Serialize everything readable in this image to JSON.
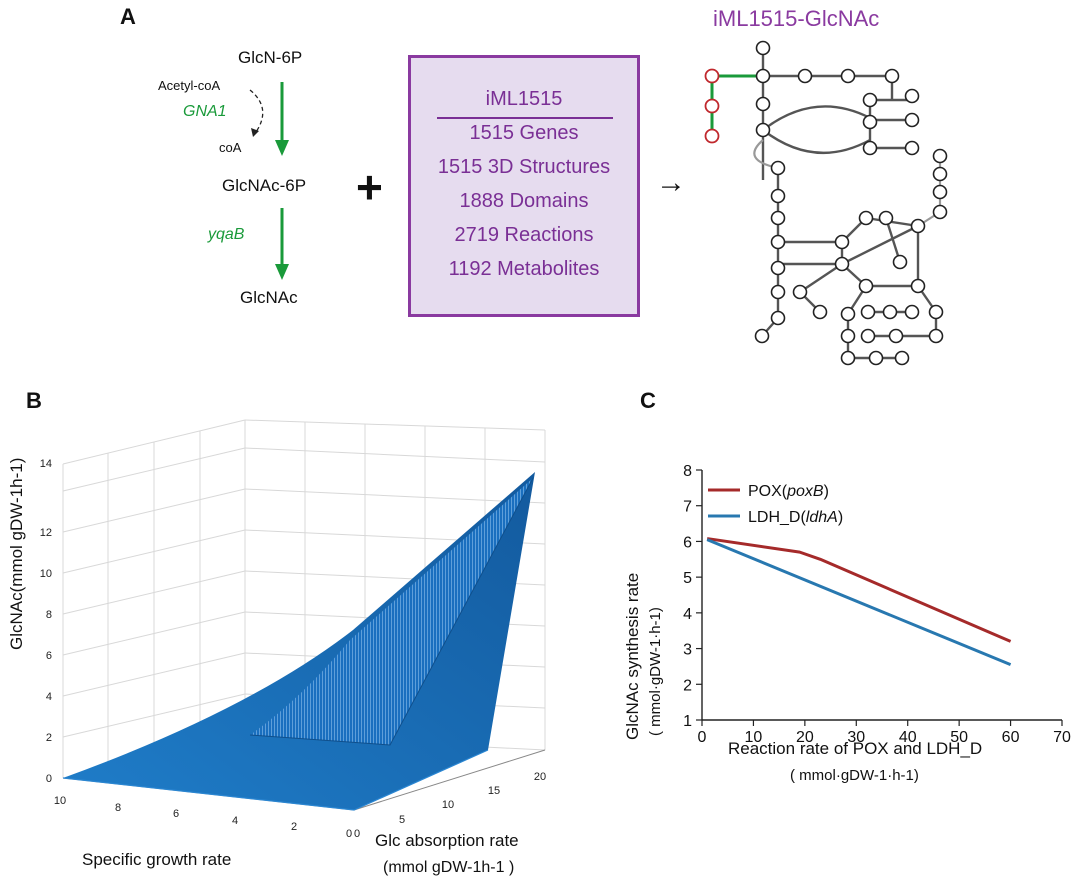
{
  "panel_labels": {
    "a": "A",
    "b": "B",
    "c": "C"
  },
  "pathway": {
    "m1": "GlcN-6P",
    "m2": "GlcNAc-6P",
    "m3": "GlcNAc",
    "enzyme1": "GNA1",
    "enzyme2": "yqaB",
    "cofactor_in": "Acetyl-coA",
    "cofactor_out": "coA"
  },
  "plus_symbol": "+",
  "arrow_symbol": "→",
  "model_box": {
    "name": "iML1515",
    "stats": [
      "1515 Genes",
      "1515 3D Structures",
      "1888 Domains",
      "2719 Reactions",
      "1192 Metabolites"
    ]
  },
  "network": {
    "title": "iML1515-GlcNAc"
  },
  "colors": {
    "green": "#1a9a3a",
    "purple": "#8a3aa0",
    "red_series": "#a52a2a",
    "blue_series": "#2878b0",
    "surface": "#1a6fbf"
  },
  "chart_data": [
    {
      "type": "surface3d",
      "panel": "B",
      "zlabel": "GlcNAc(mmol gDW-1h-1)",
      "xlabel": "Specific growth rate",
      "ylabel_line1": "Glc absorption rate",
      "ylabel_line2": "(mmol gDW-1h-1 )",
      "x_ticks": [
        "10",
        "8",
        "6",
        "4",
        "2",
        "0"
      ],
      "y_ticks": [
        "0",
        "5",
        "10",
        "15",
        "20"
      ],
      "z_ticks": [
        "0",
        "2",
        "4",
        "6",
        "8",
        "10",
        "12",
        "14"
      ],
      "xlim": [
        0,
        10
      ],
      "ylim": [
        0,
        20
      ],
      "zlim": [
        0,
        14
      ],
      "surface_peak": {
        "x": 0,
        "y": 20,
        "z": 13.7
      }
    },
    {
      "type": "line",
      "panel": "C",
      "xlabel": "Reaction rate of POX and LDH_D",
      "xlabel_unit": "( mmol·gDW-1·h-1)",
      "ylabel": "GlcNAc synthesis rate",
      "ylabel_unit": "( mmol·gDW-1·h-1)",
      "xlim": [
        0,
        70
      ],
      "ylim": [
        1,
        8
      ],
      "x_ticks": [
        "0",
        "10",
        "20",
        "30",
        "40",
        "50",
        "60",
        "70"
      ],
      "y_ticks": [
        "1",
        "2",
        "3",
        "4",
        "5",
        "6",
        "7",
        "8"
      ],
      "series": [
        {
          "name": "POX(",
          "gene": "poxB",
          "name_end": ")",
          "color": "#a52a2a",
          "x": [
            1,
            19,
            23,
            60
          ],
          "y": [
            6.08,
            5.7,
            5.5,
            3.2
          ]
        },
        {
          "name": "LDH_D(",
          "gene": "ldhA",
          "name_end": ")",
          "color": "#2878b0",
          "x": [
            1,
            60
          ],
          "y": [
            6.05,
            2.55
          ]
        }
      ]
    }
  ]
}
